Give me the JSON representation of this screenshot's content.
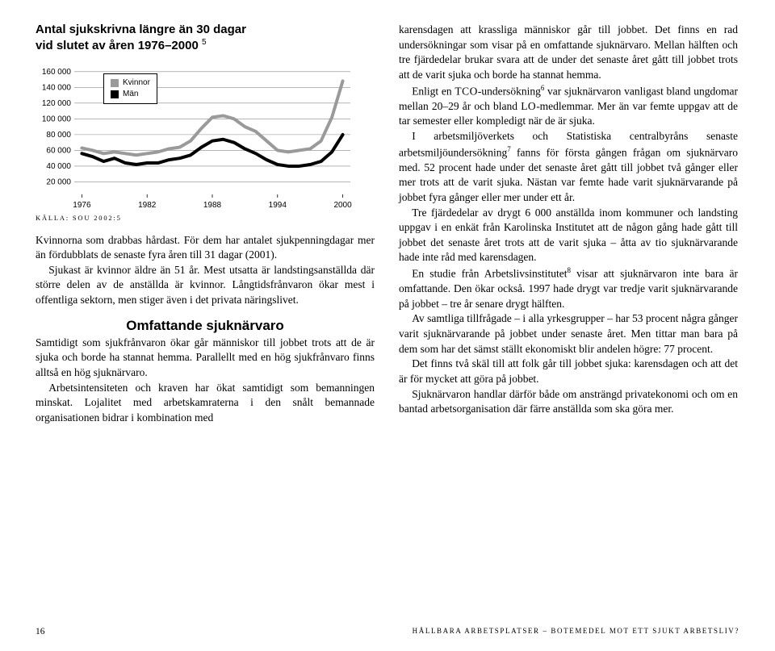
{
  "chart": {
    "type": "line",
    "title_lines": [
      "Antal sjukskrivna längre än 30 dagar",
      "vid slutet av åren 1976–2000"
    ],
    "footnote_marker": "5",
    "series": [
      {
        "name": "Kvinnor",
        "color": "#9a9a9a",
        "line_width": 4,
        "x": [
          1976,
          1977,
          1978,
          1979,
          1980,
          1981,
          1982,
          1983,
          1984,
          1985,
          1986,
          1987,
          1988,
          1989,
          1990,
          1991,
          1992,
          1993,
          1994,
          1995,
          1996,
          1997,
          1998,
          1999,
          2000
        ],
        "y": [
          63000,
          60000,
          56000,
          58000,
          56000,
          54000,
          56000,
          58000,
          62000,
          64000,
          72000,
          88000,
          102000,
          104000,
          100000,
          90000,
          84000,
          72000,
          60000,
          58000,
          60000,
          62000,
          72000,
          102000,
          148000
        ]
      },
      {
        "name": "Män",
        "color": "#000000",
        "line_width": 4,
        "x": [
          1976,
          1977,
          1978,
          1979,
          1980,
          1981,
          1982,
          1983,
          1984,
          1985,
          1986,
          1987,
          1988,
          1989,
          1990,
          1991,
          1992,
          1993,
          1994,
          1995,
          1996,
          1997,
          1998,
          1999,
          2000
        ],
        "y": [
          56000,
          52000,
          46000,
          50000,
          44000,
          42000,
          44000,
          44000,
          48000,
          50000,
          54000,
          64000,
          72000,
          74000,
          70000,
          62000,
          56000,
          48000,
          42000,
          40000,
          40000,
          42000,
          46000,
          58000,
          80000
        ]
      }
    ],
    "yticks": [
      20000,
      40000,
      60000,
      80000,
      100000,
      120000,
      140000,
      160000
    ],
    "ytick_labels": [
      "20 000",
      "40 000",
      "60 000",
      "80 000",
      "100 000",
      "120 000",
      "140 000",
      "160 000"
    ],
    "xticks": [
      1976,
      1982,
      1988,
      1994,
      2000
    ],
    "xtick_labels": [
      "1976",
      "1982",
      "1988",
      "1994",
      "2000"
    ],
    "ylim": [
      0,
      170000
    ],
    "xlim": [
      1975.3,
      2000.7
    ],
    "grid_color": "#888888",
    "grid_width": 0.6,
    "background_color": "#ffffff",
    "tick_label_fontsize": 10,
    "tick_label_fontfamily": "Arial",
    "legend": {
      "items": [
        "Kvinnor",
        "Män"
      ],
      "swatch_colors": [
        "#9a9a9a",
        "#000000"
      ]
    }
  },
  "source_label": "KÄLLA: SOU 2002:5",
  "left": {
    "p1": "Kvinnorna som drabbas hårdast. För dem har antalet sjukpenningdagar mer än fördubblats de senaste fyra åren till 31 dagar (2001).",
    "p2": "Sjukast är kvinnor äldre än 51 år. Mest utsatta är landstingsanställda där större delen av de anställda är kvinnor. Långtidsfrånvaron ökar mest i offentliga sektorn, men stiger även i det privata näringslivet.",
    "subhead": "Omfattande sjuknärvaro",
    "p3": "Samtidigt som sjukfrånvaron ökar går människor till jobbet trots att de är sjuka och borde ha stannat hemma. Parallellt med en hög sjukfrånvaro finns alltså en hög sjuknärvaro.",
    "p4": "Arbetsintensiteten och kraven har ökat samtidigt som bemanningen minskat. Lojalitet med arbetskamraterna i den snålt bemannade organisationen bidrar i kombination med"
  },
  "right": {
    "p1": "karensdagen att krassliga människor går till jobbet. Det finns en rad undersökningar som visar på en omfattande sjuknärvaro. Mellan hälften och tre fjärdedelar brukar svara att de under det senaste året gått till jobbet trots att de varit sjuka och borde ha stannat hemma.",
    "p2a": "Enligt en ",
    "p2_sc1": "TCO",
    "p2b": "-undersökning",
    "p2_fn6": "6",
    "p2c": " var sjuknärvaron vanligast bland ungdomar mellan 20–29 år och bland ",
    "p2_sc2": "LO",
    "p2d": "-medlemmar. Mer än var femte uppgav att de tar semester eller kompledigt när de är sjuka.",
    "p3a": "I arbetsmiljöverkets och Statistiska centralbyråns senaste arbetsmiljöundersökning",
    "p3_fn7": "7",
    "p3b": " fanns för första gången frågan om sjuknärvaro med. 52 procent hade under det senaste året gått till jobbet två gånger eller mer trots att de varit sjuka. Nästan var femte hade varit sjuknärvarande på jobbet fyra gånger eller mer under ett år.",
    "p4": "Tre fjärdedelar av drygt 6 000 anställda inom kommuner och landsting uppgav i en enkät från Karolinska Institutet att de någon gång hade gått till jobbet det senaste året trots att de varit sjuka – åtta av tio sjuknärvarande hade inte råd med karensdagen.",
    "p5a": "En studie från Arbetslivsinstitutet",
    "p5_fn8": "8",
    "p5b": " visar att sjuknärvaron inte bara är omfattande. Den ökar också. 1997 hade drygt var tredje varit sjuknärvarande på jobbet – tre år senare drygt hälften.",
    "p6": "Av samtliga tillfrågade – i alla yrkesgrupper – har 53 procent några gånger varit sjuknärvarande på jobbet under senaste året. Men tittar man bara på dem som har det sämst ställt ekonomiskt blir andelen högre: 77 procent.",
    "p7": "Det finns två skäl till att folk går till jobbet sjuka: karensdagen och att det är för mycket att göra på jobbet.",
    "p8": "Sjuknärvaron handlar därför både om ansträngd privatekonomi och om en bantad arbetsorganisation där färre anställda som ska göra mer."
  },
  "footer": {
    "page_num": "16",
    "running": "HÅLLBARA ARBETSPLATSER – BOTEMEDEL MOT ETT SJUKT ARBETSLIV?"
  }
}
